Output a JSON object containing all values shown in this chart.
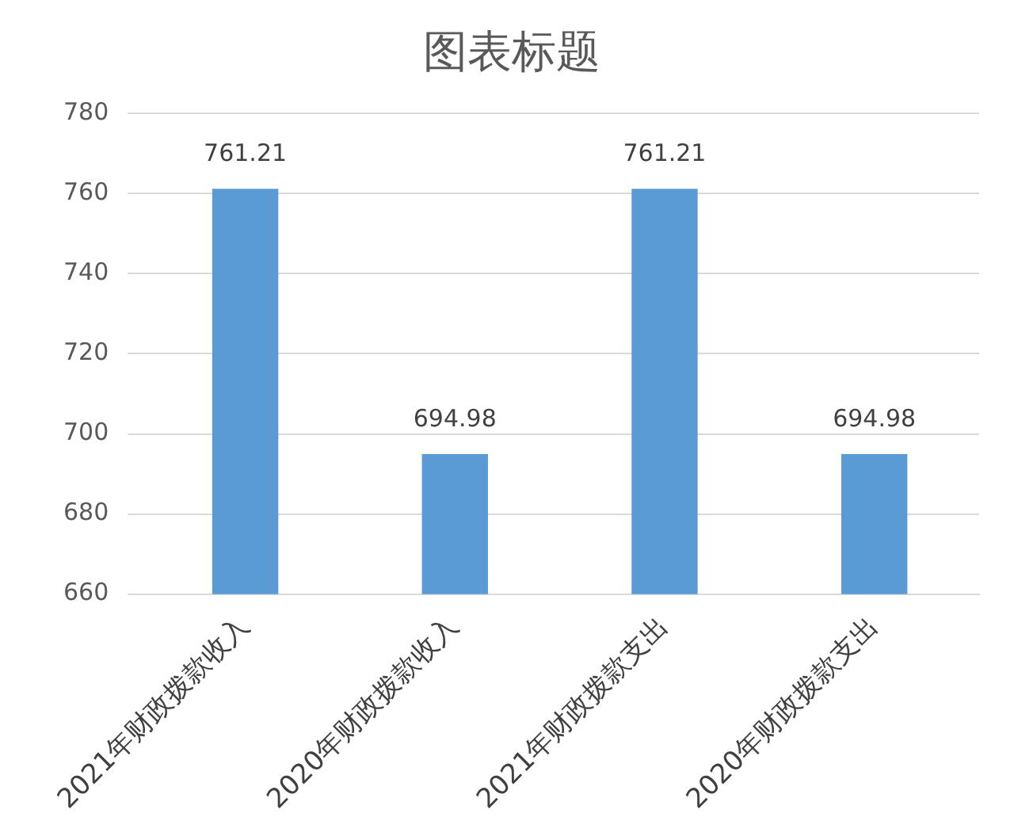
{
  "chart_data": {
    "type": "bar",
    "title": "图表标题",
    "categories": [
      "2021年财政拨款收入",
      "2020年财政拨款收入",
      "2021年财政拨款支出",
      "2020年财政拨款支出"
    ],
    "values": [
      761.21,
      694.98,
      761.21,
      694.98
    ],
    "color": "#5b9bd5",
    "ylim": [
      660,
      780
    ],
    "yticks": [
      660,
      680,
      700,
      720,
      740,
      760,
      780
    ],
    "grid": "y",
    "data_labels": true,
    "legend": false
  }
}
